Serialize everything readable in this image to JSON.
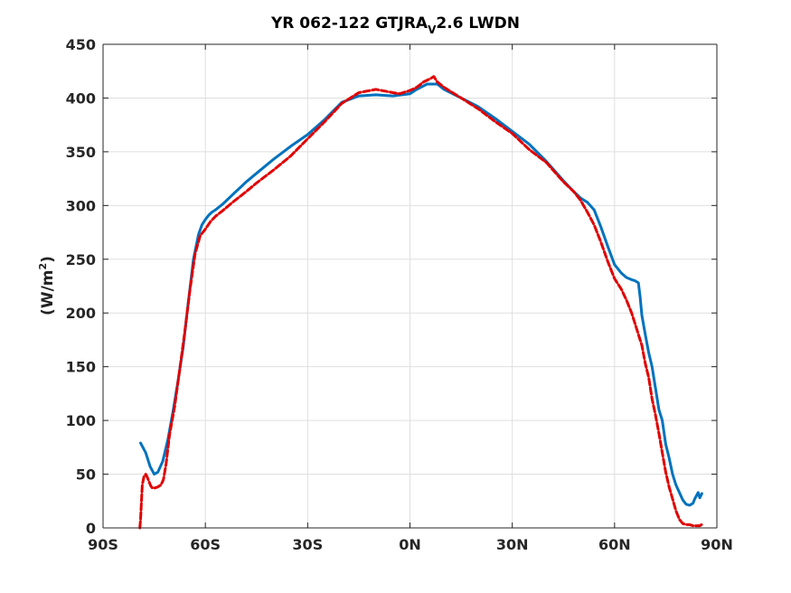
{
  "title": {
    "prefix": "YR 062-122 GTJRA",
    "subscript": "V",
    "suffix": "2.6 LWDN"
  },
  "ylabel": {
    "text": "(W/m",
    "superscript": "2",
    "close": ")"
  },
  "chart_data": {
    "type": "line",
    "title": "YR 062-122 GTJRA_V2.6 LWDN",
    "xlabel": "",
    "ylabel": "(W/m^2)",
    "xlim": [
      -90,
      90
    ],
    "ylim": [
      0,
      450
    ],
    "xticks": [
      -90,
      -60,
      -30,
      0,
      30,
      60,
      90
    ],
    "xtick_labels": [
      "90S",
      "60S",
      "30S",
      "0N",
      "30N",
      "60N",
      "90N"
    ],
    "yticks": [
      0,
      50,
      100,
      150,
      200,
      250,
      300,
      350,
      400,
      450
    ],
    "ytick_labels": [
      "0",
      "50",
      "100",
      "150",
      "200",
      "250",
      "300",
      "350",
      "400",
      "450"
    ],
    "grid": true,
    "series": [
      {
        "color": "#0072BD",
        "style": "solid",
        "x": [
          -79.0,
          -77.5,
          -76.2,
          -75.0,
          -73.9,
          -72.5,
          -71.0,
          -69.5,
          -68.0,
          -66.5,
          -65.0,
          -63.5,
          -62.0,
          -61.0,
          -60.0,
          -59.0,
          -58.0,
          -57.0,
          -55.0,
          -52.0,
          -48.0,
          -45.0,
          -40.0,
          -35.0,
          -30.0,
          -25.0,
          -20.0,
          -15.0,
          -10.0,
          -5.0,
          0.0,
          2.0,
          5.0,
          8.0,
          10.0,
          15.0,
          20.0,
          25.0,
          30.0,
          35.0,
          40.0,
          45.0,
          48.0,
          50.0,
          52.0,
          54.0,
          56.0,
          58.0,
          60.0,
          62.0,
          63.5,
          65.0,
          66.0,
          67.0,
          67.5,
          68.0,
          69.0,
          70.0,
          71.0,
          72.0,
          73.0,
          74.0,
          75.0,
          76.0,
          77.0,
          78.0,
          79.0,
          80.0,
          81.0,
          82.0,
          83.0,
          83.5,
          84.0,
          84.5,
          85.0,
          85.6
        ],
        "y": [
          79,
          70,
          57,
          50,
          52,
          62,
          82,
          108,
          137,
          168,
          210,
          250,
          273,
          282,
          287,
          291,
          294,
          296,
          301,
          310,
          322,
          330,
          343,
          355,
          366,
          380,
          396,
          402,
          403,
          402,
          404,
          408,
          413,
          413,
          408,
          400,
          392,
          381,
          369,
          357,
          341,
          323,
          313,
          307,
          303,
          296,
          280,
          262,
          245,
          237,
          233,
          231,
          230,
          228,
          215,
          198,
          180,
          163,
          150,
          130,
          110,
          100,
          78,
          65,
          50,
          40,
          33,
          26,
          22,
          21,
          23,
          27,
          30,
          33,
          28,
          32
        ]
      },
      {
        "color": "#E00000",
        "style": "dashed",
        "x": [
          -79.2,
          -79.0,
          -78.8,
          -78.5,
          -78.0,
          -77.5,
          -77.0,
          -76.5,
          -76.0,
          -75.5,
          -75.0,
          -74.0,
          -73.0,
          -72.3,
          -71.5,
          -70.5,
          -69.0,
          -67.5,
          -66.0,
          -64.5,
          -63.0,
          -61.5,
          -60.0,
          -58.5,
          -57.0,
          -55.0,
          -52.0,
          -48.0,
          -45.0,
          -40.0,
          -35.0,
          -30.0,
          -25.0,
          -20.0,
          -15.0,
          -10.0,
          -5.0,
          -3.0,
          0.0,
          2.0,
          4.0,
          6.0,
          7.0,
          8.0,
          10.0,
          15.0,
          20.0,
          25.0,
          30.0,
          35.0,
          40.0,
          45.0,
          48.0,
          50.0,
          52.0,
          54.0,
          56.0,
          58.0,
          60.0,
          62.0,
          63.5,
          65.0,
          66.0,
          67.0,
          68.0,
          69.0,
          70.0,
          71.0,
          72.0,
          73.0,
          74.0,
          75.0,
          76.0,
          77.0,
          78.0,
          79.0,
          80.0,
          81.0,
          82.0,
          83.0,
          83.5,
          84.0,
          84.5,
          85.0,
          85.5
        ],
        "y": [
          0,
          8,
          20,
          40,
          48,
          50,
          47,
          43,
          39,
          37,
          37,
          38,
          40,
          45,
          60,
          87,
          113,
          148,
          183,
          222,
          255,
          272,
          278,
          285,
          290,
          295,
          303,
          313,
          321,
          333,
          346,
          362,
          378,
          395,
          405,
          408,
          405,
          404,
          407,
          410,
          415,
          418,
          420,
          415,
          410,
          400,
          390,
          378,
          367,
          352,
          340,
          322,
          313,
          305,
          294,
          282,
          266,
          248,
          232,
          222,
          212,
          200,
          190,
          180,
          170,
          153,
          140,
          120,
          105,
          88,
          70,
          52,
          38,
          27,
          16,
          8,
          4,
          3,
          3,
          2,
          2,
          2,
          2,
          2,
          3
        ]
      }
    ]
  }
}
